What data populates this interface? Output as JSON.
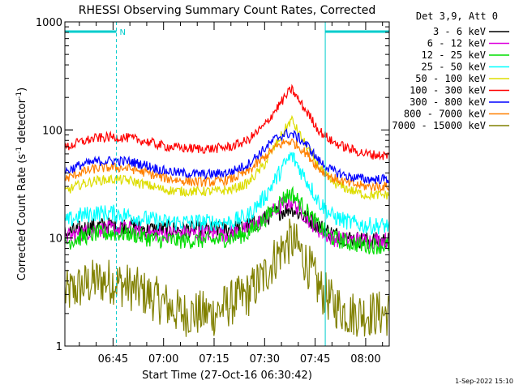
{
  "chart_data": {
    "type": "line",
    "title": "RHESSI Observing Summary Count Rates, Corrected",
    "xlabel": "Start Time (27-Oct-16 06:30:42)",
    "ylabel": "Corrected Count Rate (s^-1 detector^-1)",
    "ylabel_parts": {
      "main": "Corrected Count Rate (s",
      "sup1": "-1",
      "mid": " detector",
      "sup2": "-1",
      "end": ")"
    },
    "yscale": "log",
    "ylim": [
      1,
      1000
    ],
    "xlim": [
      "06:30:42",
      "08:07:00"
    ],
    "ytick_labels": [
      {
        "value": 1,
        "label": "1"
      },
      {
        "value": 10,
        "label": "10"
      },
      {
        "value": 100,
        "label": "100"
      },
      {
        "value": 1000,
        "label": "1000"
      }
    ],
    "xtick_labels": [
      {
        "value": "06:45",
        "label": "06:45"
      },
      {
        "value": "07:00",
        "label": "07:00"
      },
      {
        "value": "07:15",
        "label": "07:15"
      },
      {
        "value": "07:30",
        "label": "07:30"
      },
      {
        "value": "07:45",
        "label": "07:45"
      },
      {
        "value": "08:00",
        "label": "08:00"
      }
    ],
    "legend_title": "Det 3,9, Att 0",
    "legend_position": "top-right",
    "series": [
      {
        "name": "3 - 6 keV",
        "color": "#000000",
        "x": [
          "06:30:42",
          "06:35",
          "06:40",
          "06:45",
          "06:50",
          "06:55",
          "07:00",
          "07:05",
          "07:10",
          "07:15",
          "07:20",
          "07:25",
          "07:30",
          "07:33",
          "07:36",
          "07:38",
          "07:40",
          "07:43",
          "07:46",
          "07:50",
          "07:55",
          "08:00",
          "08:05",
          "08:07"
        ],
        "y": [
          11,
          12,
          13,
          13,
          13,
          12,
          12,
          12,
          12,
          12,
          12,
          13,
          15,
          17,
          18,
          19,
          17,
          15,
          13,
          11,
          10,
          9.5,
          9.5,
          9.5
        ]
      },
      {
        "name": "6 - 12 keV",
        "color": "#dd00dd",
        "x": [
          "06:30:42",
          "06:35",
          "06:40",
          "06:45",
          "06:50",
          "06:55",
          "07:00",
          "07:05",
          "07:10",
          "07:15",
          "07:20",
          "07:25",
          "07:30",
          "07:33",
          "07:36",
          "07:38",
          "07:40",
          "07:43",
          "07:46",
          "07:50",
          "07:55",
          "08:00",
          "08:05",
          "08:07"
        ],
        "y": [
          10,
          11,
          12,
          12,
          12,
          11,
          11,
          11,
          11,
          11,
          11,
          12,
          15,
          18,
          21,
          22,
          19,
          15,
          12,
          10,
          9.5,
          9.5,
          9.5,
          9.5
        ]
      },
      {
        "name": "12 - 25 keV",
        "color": "#00dd00",
        "x": [
          "06:30:42",
          "06:35",
          "06:40",
          "06:45",
          "06:50",
          "06:55",
          "07:00",
          "07:05",
          "07:10",
          "07:15",
          "07:20",
          "07:25",
          "07:30",
          "07:33",
          "07:36",
          "07:38",
          "07:40",
          "07:43",
          "07:46",
          "07:50",
          "07:55",
          "08:00",
          "08:05",
          "08:07"
        ],
        "y": [
          9,
          10,
          11,
          11,
          11,
          10,
          9.5,
          9.5,
          9.5,
          9.5,
          10,
          11,
          15,
          19,
          24,
          26,
          22,
          17,
          13,
          10,
          9,
          8.5,
          8.5,
          8.5
        ]
      },
      {
        "name": "25 - 50 keV",
        "color": "#00ffff",
        "x": [
          "06:30:42",
          "06:35",
          "06:40",
          "06:45",
          "06:50",
          "06:55",
          "07:00",
          "07:05",
          "07:10",
          "07:15",
          "07:20",
          "07:25",
          "07:30",
          "07:33",
          "07:36",
          "07:38",
          "07:40",
          "07:43",
          "07:46",
          "07:50",
          "07:55",
          "08:00",
          "08:05",
          "08:07"
        ],
        "y": [
          14,
          16,
          17,
          17,
          16,
          15,
          14,
          14,
          14,
          14,
          14,
          16,
          24,
          34,
          48,
          58,
          46,
          32,
          22,
          16,
          14,
          13,
          13,
          13
        ]
      },
      {
        "name": "50 - 100 keV",
        "color": "#dddd00",
        "x": [
          "06:30:42",
          "06:35",
          "06:40",
          "06:45",
          "06:50",
          "06:55",
          "07:00",
          "07:05",
          "07:10",
          "07:15",
          "07:20",
          "07:25",
          "07:30",
          "07:33",
          "07:36",
          "07:38",
          "07:40",
          "07:43",
          "07:46",
          "07:50",
          "07:55",
          "08:00",
          "08:05",
          "08:07"
        ],
        "y": [
          27,
          31,
          34,
          35,
          34,
          31,
          28,
          27,
          27,
          27,
          28,
          32,
          48,
          70,
          100,
          125,
          95,
          66,
          46,
          33,
          28,
          25,
          25,
          25
        ]
      },
      {
        "name": "100 - 300 keV",
        "color": "#ff0000",
        "x": [
          "06:30:42",
          "06:35",
          "06:40",
          "06:45",
          "06:50",
          "06:55",
          "07:00",
          "07:05",
          "07:10",
          "07:15",
          "07:20",
          "07:25",
          "07:30",
          "07:33",
          "07:36",
          "07:38",
          "07:40",
          "07:43",
          "07:46",
          "07:50",
          "07:55",
          "08:00",
          "08:05",
          "08:07"
        ],
        "y": [
          68,
          77,
          84,
          86,
          84,
          78,
          71,
          68,
          67,
          67,
          70,
          80,
          110,
          150,
          200,
          240,
          190,
          140,
          100,
          78,
          67,
          60,
          58,
          58
        ]
      },
      {
        "name": "300 - 800 keV",
        "color": "#0000ff",
        "x": [
          "06:30:42",
          "06:35",
          "06:40",
          "06:45",
          "06:50",
          "06:55",
          "07:00",
          "07:05",
          "07:10",
          "07:15",
          "07:20",
          "07:25",
          "07:30",
          "07:33",
          "07:36",
          "07:38",
          "07:40",
          "07:43",
          "07:46",
          "07:50",
          "07:55",
          "08:00",
          "08:05",
          "08:07"
        ],
        "y": [
          41,
          47,
          51,
          52,
          51,
          47,
          42,
          40,
          39,
          39,
          41,
          48,
          67,
          82,
          92,
          92,
          85,
          70,
          52,
          42,
          37,
          35,
          35,
          35
        ]
      },
      {
        "name": "800 - 7000 keV",
        "color": "#ff8000",
        "x": [
          "06:30:42",
          "06:35",
          "06:40",
          "06:45",
          "06:50",
          "06:55",
          "07:00",
          "07:05",
          "07:10",
          "07:15",
          "07:20",
          "07:25",
          "07:30",
          "07:33",
          "07:36",
          "07:38",
          "07:40",
          "07:43",
          "07:46",
          "07:50",
          "07:55",
          "08:00",
          "08:05",
          "08:07"
        ],
        "y": [
          35,
          40,
          44,
          45,
          44,
          40,
          36,
          34,
          33,
          33,
          35,
          41,
          56,
          68,
          77,
          78,
          71,
          58,
          44,
          36,
          32,
          30,
          30,
          30
        ]
      },
      {
        "name": "7000 - 15000 keV",
        "color": "#808000",
        "x": [
          "06:30:42",
          "06:35",
          "06:40",
          "06:45",
          "06:50",
          "06:55",
          "07:00",
          "07:05",
          "07:10",
          "07:15",
          "07:20",
          "07:25",
          "07:30",
          "07:33",
          "07:36",
          "07:38",
          "07:40",
          "07:43",
          "07:46",
          "07:50",
          "07:55",
          "08:00",
          "08:05",
          "08:07"
        ],
        "y": [
          3,
          3.5,
          4,
          4,
          3.5,
          3,
          2.5,
          2,
          2,
          2,
          2.5,
          3,
          4.5,
          6.5,
          8.5,
          9.5,
          8,
          5.5,
          3.5,
          2.5,
          2,
          2,
          2,
          2
        ]
      }
    ],
    "flag_bars": [
      {
        "start": "06:30:42",
        "end": "06:46",
        "y": 0.97
      },
      {
        "start": "07:48",
        "end": "08:07",
        "y": 0.97
      }
    ],
    "flag_label": "N",
    "vertical_lines": [
      {
        "x": "06:30:42",
        "style": "solid"
      },
      {
        "x": "06:46",
        "style": "dashed"
      },
      {
        "x": "07:48",
        "style": "solid"
      },
      {
        "x": "08:07",
        "style": "dashed"
      }
    ],
    "footer": "1-Sep-2022 15:10"
  }
}
